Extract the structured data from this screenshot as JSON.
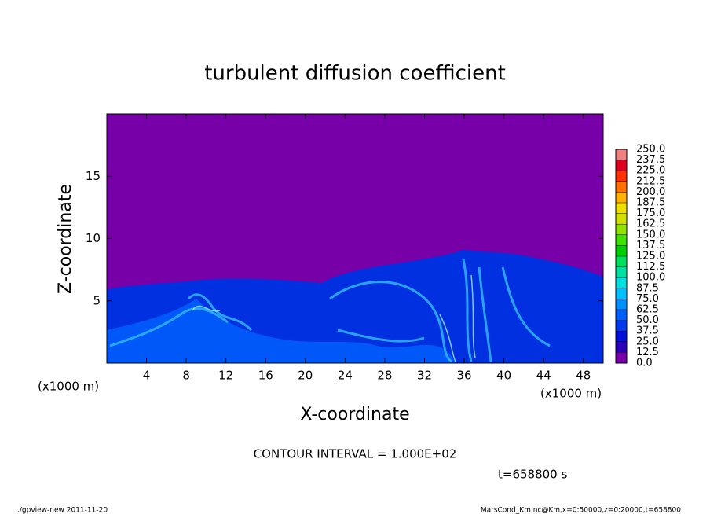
{
  "chart_data": {
    "type": "contour",
    "title": "turbulent diffusion coefficient",
    "xlabel": "X-coordinate",
    "ylabel": "Z-coordinate",
    "x_unit": "(x1000 m)",
    "y_unit": "(x1000 m)",
    "xlim": [
      0,
      50
    ],
    "ylim": [
      0,
      20
    ],
    "xticks": [
      4,
      8,
      12,
      16,
      20,
      24,
      28,
      32,
      36,
      40,
      44,
      48
    ],
    "yticks": [
      5,
      10,
      15
    ],
    "levels": [
      {
        "value": 0,
        "label": "0.0"
      },
      {
        "value": 12.5,
        "label": "12.5"
      },
      {
        "value": 25,
        "label": "25.0"
      },
      {
        "value": 37.5,
        "label": "37.5"
      },
      {
        "value": 50,
        "label": "50.0"
      },
      {
        "value": 62.5,
        "label": "62.5"
      },
      {
        "value": 75,
        "label": "75.0"
      },
      {
        "value": 87.5,
        "label": "87.5"
      },
      {
        "value": 100,
        "label": "100.0"
      },
      {
        "value": 112.5,
        "label": "112.5"
      },
      {
        "value": 125,
        "label": "125.0"
      },
      {
        "value": 137.5,
        "label": "137.5"
      },
      {
        "value": 150,
        "label": "150.0"
      },
      {
        "value": 162.5,
        "label": "162.5"
      },
      {
        "value": 175,
        "label": "175.0"
      },
      {
        "value": 187.5,
        "label": "187.5"
      },
      {
        "value": 200,
        "label": "200.0"
      },
      {
        "value": 212.5,
        "label": "212.5"
      },
      {
        "value": 225,
        "label": "225.0"
      },
      {
        "value": 237.5,
        "label": "237.5"
      },
      {
        "value": 250,
        "label": "250.0"
      }
    ],
    "level_colors": [
      "#7800a8",
      "#2a00b8",
      "#0010d8",
      "#0038f0",
      "#0060ff",
      "#0090ff",
      "#00c0ff",
      "#00e0e0",
      "#00e0a0",
      "#00e060",
      "#00d000",
      "#40e000",
      "#90e000",
      "#d0e000",
      "#f0e000",
      "#ffb000",
      "#ff7000",
      "#ff3000",
      "#e00020",
      "#f08080"
    ],
    "annotation": "CONTOUR INTERVAL = 1.000E+02",
    "time_label": "t=658800 s",
    "footer_left": "./gpview-new  2011-11-20",
    "footer_right": "MarsCond_Km.nc@Km,x=0:50000,z=0:20000,t=658800"
  }
}
